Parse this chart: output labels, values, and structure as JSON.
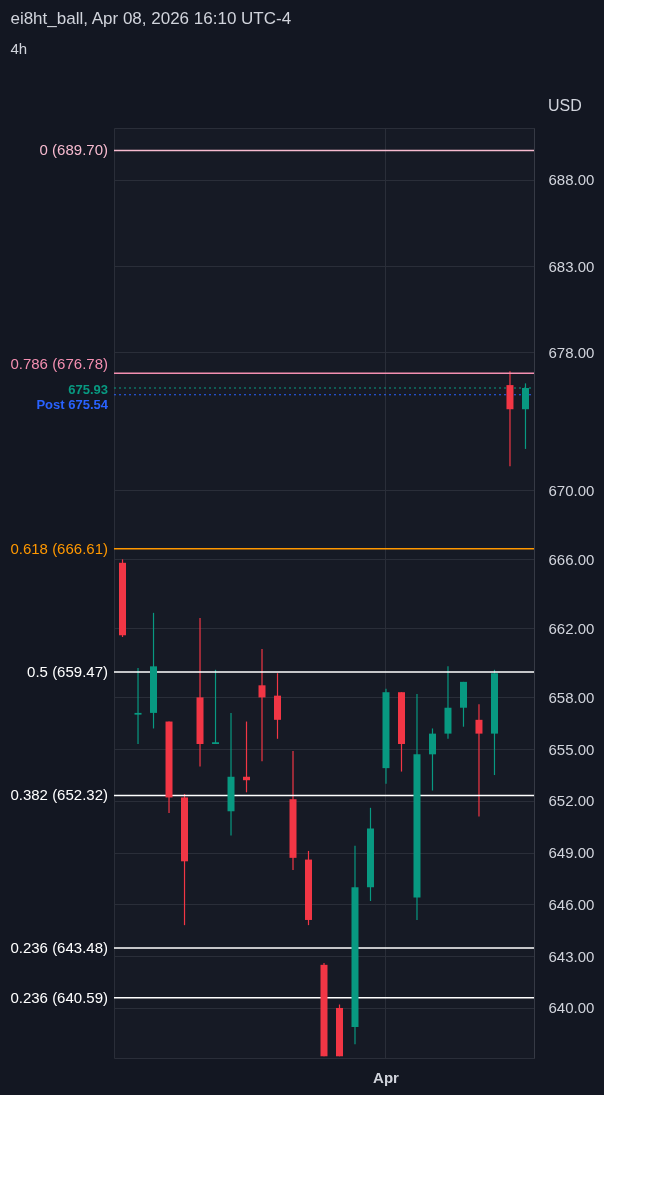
{
  "chart_data": {
    "type": "candlestick",
    "title": "ei8ht_ball, Apr 08, 2026 16:10 UTC-4",
    "subtitle": "4h",
    "annotations": [
      "USD"
    ],
    "categories": [
      null,
      null,
      null,
      null,
      null,
      null,
      null,
      null,
      null,
      null,
      null,
      null,
      null,
      null,
      null,
      null,
      null,
      "Apr",
      null,
      null,
      null,
      null,
      null,
      null,
      null,
      null,
      null
    ],
    "ohlc": [
      [
        665.8,
        666.0,
        661.5,
        661.6
      ],
      [
        657.0,
        659.7,
        655.3,
        657.1
      ],
      [
        657.1,
        662.9,
        656.2,
        659.8
      ],
      [
        656.6,
        656.6,
        651.3,
        652.2
      ],
      [
        652.2,
        652.4,
        644.8,
        648.5
      ],
      [
        658.0,
        662.6,
        654.0,
        655.3
      ],
      [
        655.3,
        659.6,
        655.3,
        655.4
      ],
      [
        651.4,
        657.1,
        650.0,
        653.4
      ],
      [
        653.4,
        656.6,
        652.5,
        653.2
      ],
      [
        658.7,
        660.8,
        654.3,
        658.0
      ],
      [
        658.1,
        659.4,
        655.6,
        656.7
      ],
      [
        652.1,
        654.9,
        648.0,
        648.7
      ],
      [
        648.6,
        649.1,
        644.8,
        645.1
      ],
      [
        642.5,
        642.6,
        637.2,
        637.2
      ],
      [
        640.0,
        640.2,
        637.2,
        637.2
      ],
      [
        638.9,
        649.4,
        637.9,
        647.0
      ],
      [
        647.0,
        651.6,
        646.2,
        650.4
      ],
      [
        653.9,
        658.5,
        653.0,
        658.3
      ],
      [
        658.3,
        658.3,
        653.7,
        655.3
      ],
      [
        646.4,
        658.2,
        645.1,
        654.7
      ],
      [
        654.7,
        656.2,
        652.6,
        655.9
      ],
      [
        655.9,
        659.8,
        655.6,
        657.4
      ],
      [
        657.4,
        658.9,
        656.3,
        658.9
      ],
      [
        656.7,
        657.6,
        651.1,
        655.9
      ],
      [
        655.9,
        659.6,
        653.5,
        659.4
      ],
      [
        676.1,
        676.9,
        671.4,
        674.7
      ],
      [
        674.7,
        676.2,
        672.4,
        675.93
      ]
    ],
    "colors": [
      "#f23645",
      "#089981",
      "#089981",
      "#f23645",
      "#f23645",
      "#f23645",
      "#089981",
      "#089981",
      "#f23645",
      "#f23645",
      "#f23645",
      "#f23645",
      "#f23645",
      "#f23645",
      "#f23645",
      "#089981",
      "#089981",
      "#089981",
      "#f23645",
      "#089981",
      "#089981",
      "#089981",
      "#089981",
      "#f23645",
      "#089981",
      "#f23645",
      "#089981"
    ],
    "ylim": [
      637.1,
      691.0
    ],
    "yticks": [
      {
        "value": 640,
        "label": "640.00"
      },
      {
        "value": 643,
        "label": "643.00"
      },
      {
        "value": 646,
        "label": "646.00"
      },
      {
        "value": 649,
        "label": "649.00"
      },
      {
        "value": 652,
        "label": "652.00"
      },
      {
        "value": 655,
        "label": "655.00"
      },
      {
        "value": 658,
        "label": "658.00"
      },
      {
        "value": 662,
        "label": "662.00"
      },
      {
        "value": 666,
        "label": "666.00"
      },
      {
        "value": 670,
        "label": "670.00"
      },
      {
        "value": 678,
        "label": "678.00"
      },
      {
        "value": 683,
        "label": "683.00"
      },
      {
        "value": 688,
        "label": "688.00"
      }
    ],
    "grid": true,
    "ref_lines": [
      {
        "axis": "y",
        "value": 689.7,
        "label": "0 (689.70)",
        "color": "#f8bbd0"
      },
      {
        "axis": "y",
        "value": 676.78,
        "label": "0.786 (676.78)",
        "color": "#f48fb1"
      },
      {
        "axis": "y",
        "value": 675.93,
        "label": "675.93",
        "color": "#089981",
        "line_style": "dotted"
      },
      {
        "axis": "y",
        "value": 675.54,
        "label": "Post 675.54",
        "color": "#2962ff",
        "line_style": "dotted"
      },
      {
        "axis": "y",
        "value": 666.61,
        "label": "0.618 (666.61)",
        "color": "#ff9800"
      },
      {
        "axis": "y",
        "value": 659.47,
        "label": "0.5 (659.47)",
        "color": "#ffffff"
      },
      {
        "axis": "y",
        "value": 652.32,
        "label": "0.382 (652.32)",
        "color": "#ffffff"
      },
      {
        "axis": "y",
        "value": 643.48,
        "label": "0.236 (643.48)",
        "color": "#ffffff"
      },
      {
        "axis": "y",
        "value": 640.59,
        "label": "0.236 (640.59)",
        "color": "#ffffff"
      }
    ]
  }
}
